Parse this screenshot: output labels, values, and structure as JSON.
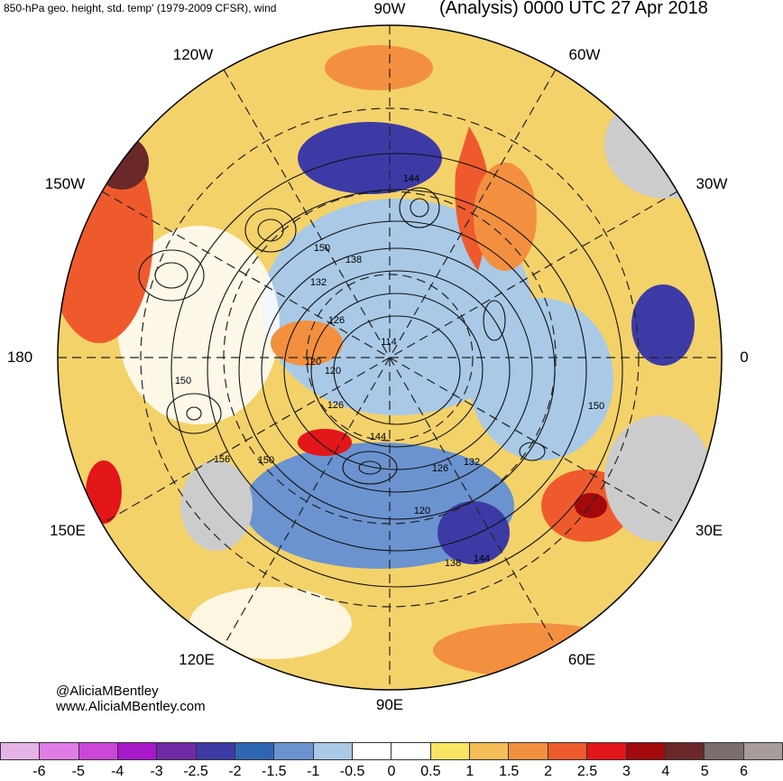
{
  "header": {
    "left": "850-hPa geo. height, std. temp' (1979-2009 CFSR), wind",
    "right": "(Analysis) 0000 UTC 27 Apr 2018"
  },
  "longitude_labels": {
    "w90": "90W",
    "w120": "120W",
    "w60": "60W",
    "w150": "150W",
    "w30": "30W",
    "d180": "180",
    "d0": "0",
    "e150": "150E",
    "e30": "30E",
    "e120": "120E",
    "e60": "60E",
    "e90": "90E"
  },
  "height_contour_labels": [
    "150",
    "138",
    "132",
    "126",
    "144",
    "120",
    "114",
    "126",
    "120",
    "144",
    "126",
    "132",
    "120",
    "138",
    "144",
    "150",
    "156",
    "150",
    "150"
  ],
  "credit": {
    "handle": "@AliciaMBentley",
    "site": "www.AliciaMBentley.com"
  },
  "colorbar": {
    "labels": [
      "-6",
      "-5",
      "-4",
      "-3",
      "-2.5",
      "-2",
      "-1.5",
      "-1",
      "-0.5",
      "0",
      "0.5",
      "1",
      "1.5",
      "2",
      "2.5",
      "3",
      "4",
      "5",
      "6"
    ],
    "colors": [
      "#e6b3e6",
      "#e07de6",
      "#cc47d9",
      "#a817c9",
      "#6f2aa8",
      "#3d3aa6",
      "#2f66b3",
      "#6b93cf",
      "#a9c9e6",
      "#ffffff",
      "#ffffff",
      "#fae463",
      "#f5bd55",
      "#f3903f",
      "#ef5a2d",
      "#e3161a",
      "#a3080d",
      "#6b2828",
      "#7a6e6e",
      "#a89c9c"
    ]
  }
}
